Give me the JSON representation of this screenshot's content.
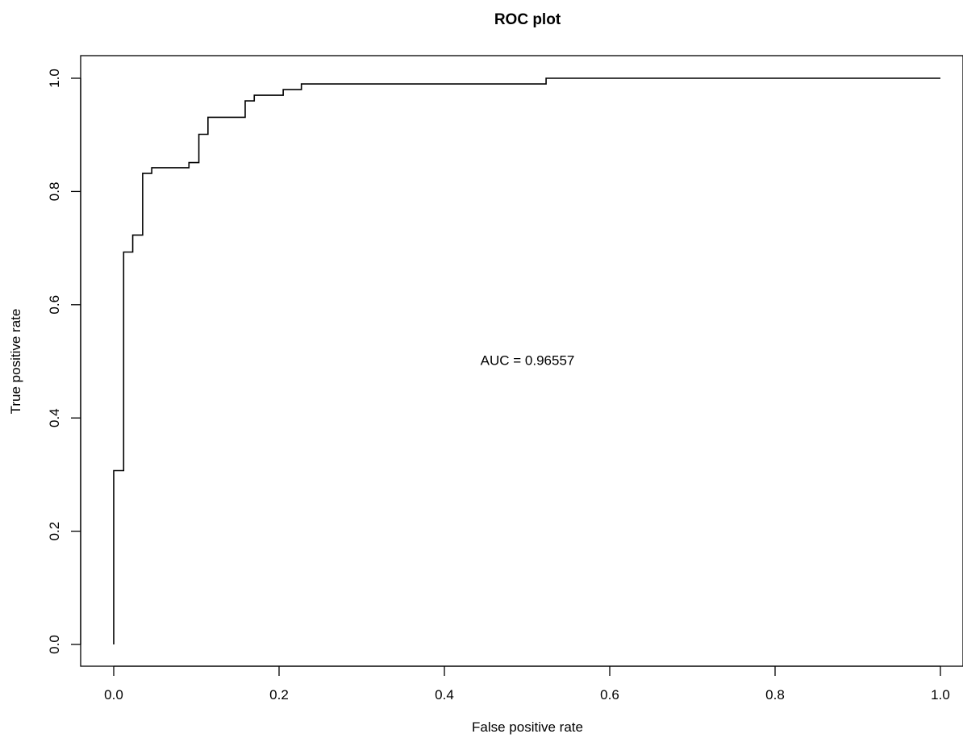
{
  "chart_data": {
    "type": "line",
    "title": "ROC plot",
    "xlabel": "False positive rate",
    "ylabel": "True positive rate",
    "xlim": [
      0,
      1
    ],
    "ylim": [
      0,
      1
    ],
    "x_ticks": [
      "0.0",
      "0.2",
      "0.4",
      "0.6",
      "0.8",
      "1.0"
    ],
    "y_ticks": [
      "0.0",
      "0.2",
      "0.4",
      "0.6",
      "0.8",
      "1.0"
    ],
    "grid": false,
    "line_color": "#000000",
    "annotation": "AUC =  0.96557",
    "annotation_position": {
      "x": 0.5,
      "y": 0.5
    },
    "series": [
      {
        "points": [
          [
            0.0,
            0.0
          ],
          [
            0.0,
            0.307
          ],
          [
            0.012,
            0.307
          ],
          [
            0.012,
            0.693
          ],
          [
            0.023,
            0.693
          ],
          [
            0.023,
            0.723
          ],
          [
            0.035,
            0.723
          ],
          [
            0.035,
            0.832
          ],
          [
            0.046,
            0.832
          ],
          [
            0.046,
            0.842
          ],
          [
            0.091,
            0.842
          ],
          [
            0.091,
            0.851
          ],
          [
            0.103,
            0.851
          ],
          [
            0.103,
            0.901
          ],
          [
            0.114,
            0.901
          ],
          [
            0.114,
            0.931
          ],
          [
            0.159,
            0.931
          ],
          [
            0.159,
            0.96
          ],
          [
            0.17,
            0.96
          ],
          [
            0.17,
            0.97
          ],
          [
            0.205,
            0.97
          ],
          [
            0.205,
            0.98
          ],
          [
            0.227,
            0.98
          ],
          [
            0.227,
            0.99
          ],
          [
            0.523,
            0.99
          ],
          [
            0.523,
            1.0
          ],
          [
            1.0,
            1.0
          ]
        ]
      }
    ]
  }
}
